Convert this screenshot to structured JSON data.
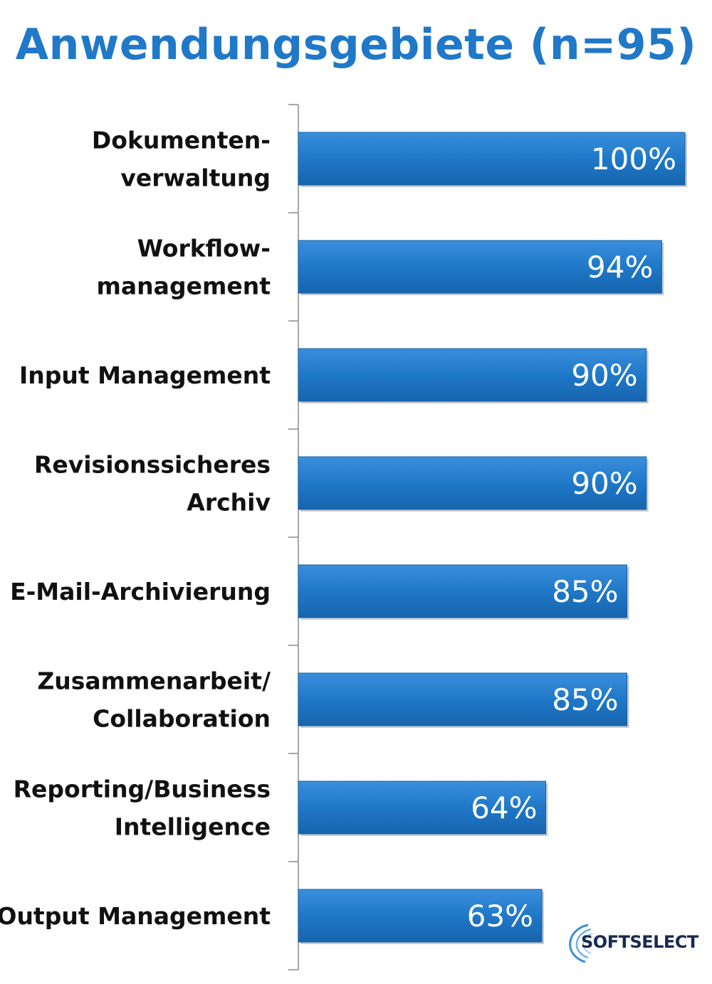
{
  "chart_data": {
    "type": "bar",
    "orientation": "horizontal",
    "title": "Anwendungsgebiete (n=95)",
    "categories": [
      [
        "Dokumenten-",
        "verwaltung"
      ],
      [
        "Workflow-",
        "management"
      ],
      [
        "Input Management"
      ],
      [
        "Revisionssicheres",
        "Archiv"
      ],
      [
        "E-Mail-Archivierung"
      ],
      [
        "Zusammenarbeit/",
        "Collaboration"
      ],
      [
        "Reporting/Business",
        "Intelligence"
      ],
      [
        "Output Management"
      ]
    ],
    "values": [
      100,
      94,
      90,
      90,
      85,
      85,
      64,
      63
    ],
    "value_labels": [
      "100%",
      "94%",
      "90%",
      "90%",
      "85%",
      "85%",
      "64%",
      "63%"
    ],
    "xlim": [
      0,
      100
    ],
    "grid": false,
    "bar_color": "#1f78c8",
    "title_color": "#1f78c8"
  },
  "logo": {
    "text": "SOFTSELECT",
    "color": "#1a2a50"
  }
}
